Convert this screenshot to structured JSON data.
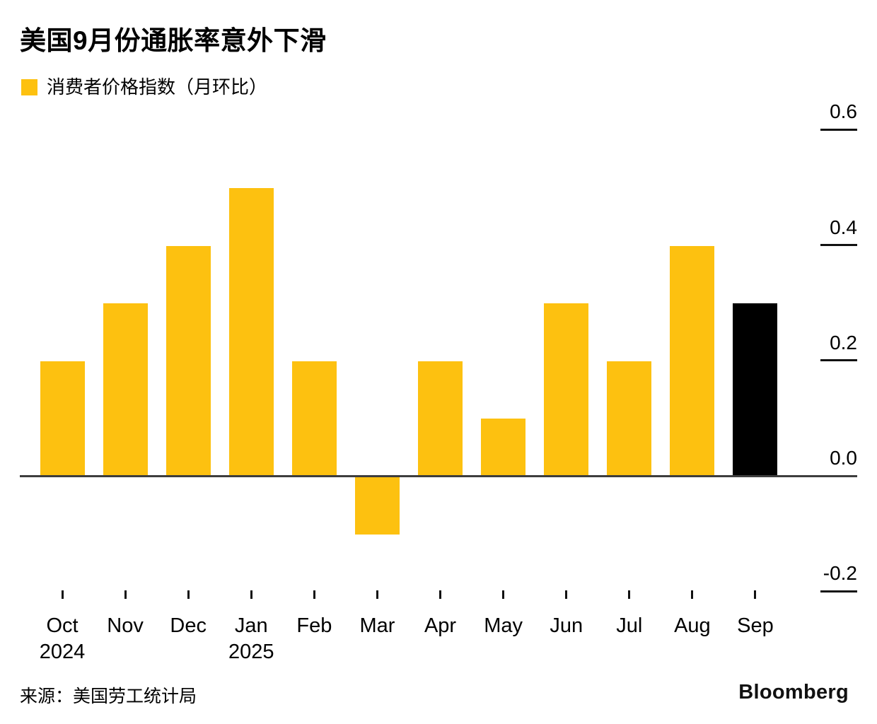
{
  "header": {
    "title": "美国9月份通胀率意外下滑",
    "legend_label": "消费者价格指数（月环比）"
  },
  "footer": {
    "source": "来源：美国劳工统计局",
    "brand": "Bloomberg"
  },
  "colors": {
    "bar": "#FDC110",
    "highlight": "#000000",
    "axis_line": "#3d3d3d",
    "tick": "#111111"
  },
  "chart_data": {
    "type": "bar",
    "title": "美国9月份通胀率意外下滑",
    "series": [
      {
        "name": "消费者价格指数（月环比）",
        "values": [
          0.2,
          0.3,
          0.4,
          0.5,
          0.2,
          -0.1,
          0.2,
          0.1,
          0.3,
          0.2,
          0.4,
          0.3
        ]
      }
    ],
    "categories": [
      "Oct",
      "Nov",
      "Dec",
      "Jan",
      "Feb",
      "Mar",
      "Apr",
      "May",
      "Jun",
      "Jul",
      "Aug",
      "Sep"
    ],
    "category_sublabels": [
      "2024",
      "",
      "",
      "2025",
      "",
      "",
      "",
      "",
      "",
      "",
      "",
      ""
    ],
    "highlight_index": 11,
    "highlight_category": "Sep",
    "y_ticks": [
      0.6,
      0.4,
      0.2,
      0.0,
      -0.2
    ],
    "y_tick_labels": [
      "0.6",
      "0.4",
      "0.2",
      "0.0",
      "-0.2"
    ],
    "ylim": [
      -0.2,
      0.65
    ],
    "xlabel": "",
    "ylabel": "",
    "grid": false,
    "legend_position": "top-left",
    "y_axis_side": "right"
  }
}
